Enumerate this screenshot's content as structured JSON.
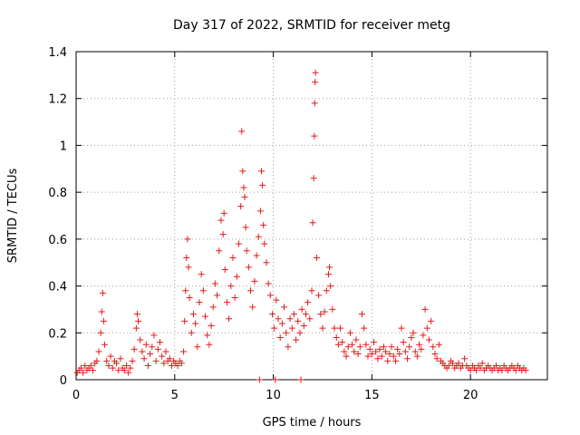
{
  "chart_data": {
    "type": "scatter",
    "title": "Day 317 of 2022, SRMTID for receiver metg",
    "xlabel": "GPS time / hours",
    "ylabel": "SRMTID / TECUs",
    "xlim": [
      0,
      23.9
    ],
    "ylim": [
      0,
      1.4
    ],
    "x_ticks": [
      0,
      5,
      10,
      15,
      20
    ],
    "y_ticks": [
      0,
      0.2,
      0.4,
      0.6,
      0.8,
      1,
      1.2,
      1.4
    ],
    "x_tick_labels": [
      "0",
      "5",
      "10",
      "15",
      "20"
    ],
    "y_tick_labels": [
      "0",
      "0.2",
      "0.4",
      "0.6",
      "0.8",
      "1",
      "1.2",
      "1.4"
    ],
    "grid": true,
    "marker": "+",
    "marker_color": "#e41a1c",
    "series": [
      {
        "name": "SRMTID",
        "points": [
          [
            0.05,
            0.03
          ],
          [
            0.15,
            0.04
          ],
          [
            0.25,
            0.05
          ],
          [
            0.35,
            0.03
          ],
          [
            0.45,
            0.06
          ],
          [
            0.55,
            0.04
          ],
          [
            0.65,
            0.05
          ],
          [
            0.75,
            0.06
          ],
          [
            0.85,
            0.04
          ],
          [
            0.95,
            0.07
          ],
          [
            1.05,
            0.08
          ],
          [
            1.15,
            0.12
          ],
          [
            1.25,
            0.2
          ],
          [
            1.3,
            0.29
          ],
          [
            1.35,
            0.37
          ],
          [
            1.4,
            0.25
          ],
          [
            1.45,
            0.15
          ],
          [
            1.55,
            0.08
          ],
          [
            1.65,
            0.06
          ],
          [
            1.75,
            0.1
          ],
          [
            1.85,
            0.05
          ],
          [
            1.95,
            0.08
          ],
          [
            2.05,
            0.07
          ],
          [
            2.15,
            0.04
          ],
          [
            2.25,
            0.09
          ],
          [
            2.35,
            0.05
          ],
          [
            2.45,
            0.04
          ],
          [
            2.55,
            0.06
          ],
          [
            2.65,
            0.03
          ],
          [
            2.75,
            0.05
          ],
          [
            2.85,
            0.08
          ],
          [
            2.95,
            0.13
          ],
          [
            3.05,
            0.22
          ],
          [
            3.1,
            0.28
          ],
          [
            3.15,
            0.25
          ],
          [
            3.25,
            0.17
          ],
          [
            3.35,
            0.12
          ],
          [
            3.45,
            0.09
          ],
          [
            3.55,
            0.15
          ],
          [
            3.65,
            0.06
          ],
          [
            3.75,
            0.11
          ],
          [
            3.85,
            0.14
          ],
          [
            3.95,
            0.19
          ],
          [
            4.05,
            0.08
          ],
          [
            4.15,
            0.13
          ],
          [
            4.25,
            0.16
          ],
          [
            4.35,
            0.1
          ],
          [
            4.45,
            0.07
          ],
          [
            4.55,
            0.12
          ],
          [
            4.65,
            0.08
          ],
          [
            4.75,
            0.09
          ],
          [
            4.85,
            0.06
          ],
          [
            4.95,
            0.08
          ],
          [
            5.05,
            0.07
          ],
          [
            5.15,
            0.06
          ],
          [
            5.25,
            0.08
          ],
          [
            5.35,
            0.07
          ],
          [
            5.45,
            0.12
          ],
          [
            5.5,
            0.25
          ],
          [
            5.55,
            0.38
          ],
          [
            5.6,
            0.52
          ],
          [
            5.65,
            0.6
          ],
          [
            5.7,
            0.48
          ],
          [
            5.75,
            0.35
          ],
          [
            5.85,
            0.2
          ],
          [
            5.95,
            0.28
          ],
          [
            6.05,
            0.24
          ],
          [
            6.15,
            0.14
          ],
          [
            6.25,
            0.33
          ],
          [
            6.35,
            0.45
          ],
          [
            6.45,
            0.38
          ],
          [
            6.55,
            0.27
          ],
          [
            6.65,
            0.19
          ],
          [
            6.75,
            0.15
          ],
          [
            6.85,
            0.23
          ],
          [
            6.95,
            0.31
          ],
          [
            7.05,
            0.41
          ],
          [
            7.15,
            0.36
          ],
          [
            7.25,
            0.55
          ],
          [
            7.35,
            0.68
          ],
          [
            7.45,
            0.62
          ],
          [
            7.5,
            0.71
          ],
          [
            7.55,
            0.47
          ],
          [
            7.65,
            0.33
          ],
          [
            7.75,
            0.26
          ],
          [
            7.85,
            0.4
          ],
          [
            7.95,
            0.52
          ],
          [
            8.05,
            0.35
          ],
          [
            8.15,
            0.44
          ],
          [
            8.25,
            0.58
          ],
          [
            8.35,
            0.74
          ],
          [
            8.4,
            1.06
          ],
          [
            8.45,
            0.89
          ],
          [
            8.5,
            0.82
          ],
          [
            8.55,
            0.78
          ],
          [
            8.6,
            0.65
          ],
          [
            8.65,
            0.55
          ],
          [
            8.75,
            0.48
          ],
          [
            8.85,
            0.38
          ],
          [
            8.95,
            0.31
          ],
          [
            9.05,
            0.42
          ],
          [
            9.15,
            0.53
          ],
          [
            9.25,
            0.61
          ],
          [
            9.35,
            0.72
          ],
          [
            9.4,
            0.89
          ],
          [
            9.45,
            0.83
          ],
          [
            9.5,
            0.66
          ],
          [
            9.55,
            0.58
          ],
          [
            9.65,
            0.5
          ],
          [
            9.75,
            0.41
          ],
          [
            9.85,
            0.36
          ],
          [
            9.95,
            0.28
          ],
          [
            10.05,
            0.22
          ],
          [
            10.15,
            0.34
          ],
          [
            10.25,
            0.26
          ],
          [
            10.35,
            0.18
          ],
          [
            10.45,
            0.24
          ],
          [
            10.55,
            0.31
          ],
          [
            10.65,
            0.2
          ],
          [
            10.75,
            0.14
          ],
          [
            10.85,
            0.26
          ],
          [
            10.95,
            0.22
          ],
          [
            11.05,
            0.28
          ],
          [
            11.15,
            0.17
          ],
          [
            11.25,
            0.25
          ],
          [
            11.35,
            0.2
          ],
          [
            11.45,
            0.3
          ],
          [
            11.55,
            0.23
          ],
          [
            11.65,
            0.28
          ],
          [
            11.75,
            0.33
          ],
          [
            11.85,
            0.26
          ],
          [
            11.95,
            0.38
          ],
          [
            12.0,
            0.67
          ],
          [
            12.05,
            0.86
          ],
          [
            12.08,
            1.04
          ],
          [
            12.1,
            1.18
          ],
          [
            12.12,
            1.27
          ],
          [
            12.14,
            1.31
          ],
          [
            12.2,
            0.52
          ],
          [
            12.3,
            0.36
          ],
          [
            12.4,
            0.28
          ],
          [
            12.5,
            0.22
          ],
          [
            12.6,
            0.29
          ],
          [
            12.7,
            0.38
          ],
          [
            12.8,
            0.45
          ],
          [
            12.85,
            0.48
          ],
          [
            12.9,
            0.4
          ],
          [
            13.0,
            0.3
          ],
          [
            13.1,
            0.22
          ],
          [
            13.2,
            0.18
          ],
          [
            13.3,
            0.15
          ],
          [
            13.4,
            0.22
          ],
          [
            13.5,
            0.16
          ],
          [
            13.6,
            0.12
          ],
          [
            13.7,
            0.1
          ],
          [
            13.8,
            0.14
          ],
          [
            13.9,
            0.2
          ],
          [
            14.0,
            0.15
          ],
          [
            14.1,
            0.12
          ],
          [
            14.2,
            0.17
          ],
          [
            14.3,
            0.11
          ],
          [
            14.4,
            0.14
          ],
          [
            14.5,
            0.28
          ],
          [
            14.6,
            0.22
          ],
          [
            14.7,
            0.15
          ],
          [
            14.8,
            0.1
          ],
          [
            14.9,
            0.13
          ],
          [
            15.0,
            0.11
          ],
          [
            15.1,
            0.16
          ],
          [
            15.2,
            0.12
          ],
          [
            15.3,
            0.09
          ],
          [
            15.4,
            0.13
          ],
          [
            15.5,
            0.1
          ],
          [
            15.6,
            0.14
          ],
          [
            15.7,
            0.12
          ],
          [
            15.8,
            0.08
          ],
          [
            15.9,
            0.11
          ],
          [
            16.0,
            0.14
          ],
          [
            16.1,
            0.1
          ],
          [
            16.2,
            0.08
          ],
          [
            16.3,
            0.13
          ],
          [
            16.4,
            0.11
          ],
          [
            16.5,
            0.22
          ],
          [
            16.6,
            0.16
          ],
          [
            16.7,
            0.12
          ],
          [
            16.8,
            0.09
          ],
          [
            16.9,
            0.14
          ],
          [
            17.0,
            0.18
          ],
          [
            17.1,
            0.2
          ],
          [
            17.2,
            0.12
          ],
          [
            17.3,
            0.1
          ],
          [
            17.4,
            0.15
          ],
          [
            17.5,
            0.13
          ],
          [
            17.6,
            0.19
          ],
          [
            17.7,
            0.3
          ],
          [
            17.8,
            0.22
          ],
          [
            17.9,
            0.17
          ],
          [
            18.0,
            0.25
          ],
          [
            18.1,
            0.14
          ],
          [
            18.2,
            0.11
          ],
          [
            18.3,
            0.09
          ],
          [
            18.4,
            0.15
          ],
          [
            18.5,
            0.08
          ],
          [
            18.6,
            0.07
          ],
          [
            18.7,
            0.06
          ],
          [
            18.8,
            0.05
          ],
          [
            18.9,
            0.06
          ],
          [
            19.0,
            0.08
          ],
          [
            19.1,
            0.07
          ],
          [
            19.2,
            0.05
          ],
          [
            19.3,
            0.06
          ],
          [
            19.4,
            0.07
          ],
          [
            19.5,
            0.05
          ],
          [
            19.6,
            0.06
          ],
          [
            19.7,
            0.09
          ],
          [
            19.8,
            0.06
          ],
          [
            19.9,
            0.05
          ],
          [
            20.0,
            0.04
          ],
          [
            20.1,
            0.06
          ],
          [
            20.2,
            0.05
          ],
          [
            20.3,
            0.04
          ],
          [
            20.4,
            0.06
          ],
          [
            20.5,
            0.05
          ],
          [
            20.6,
            0.07
          ],
          [
            20.7,
            0.04
          ],
          [
            20.8,
            0.05
          ],
          [
            20.9,
            0.06
          ],
          [
            21.0,
            0.05
          ],
          [
            21.1,
            0.04
          ],
          [
            21.2,
            0.05
          ],
          [
            21.3,
            0.06
          ],
          [
            21.4,
            0.04
          ],
          [
            21.5,
            0.05
          ],
          [
            21.6,
            0.04
          ],
          [
            21.7,
            0.06
          ],
          [
            21.8,
            0.05
          ],
          [
            21.9,
            0.04
          ],
          [
            22.0,
            0.05
          ],
          [
            22.1,
            0.06
          ],
          [
            22.2,
            0.05
          ],
          [
            22.3,
            0.04
          ],
          [
            22.4,
            0.06
          ],
          [
            22.5,
            0.05
          ],
          [
            22.6,
            0.04
          ],
          [
            22.7,
            0.05
          ],
          [
            22.8,
            0.04
          ],
          [
            9.3,
            0.0
          ],
          [
            10.1,
            0.0
          ],
          [
            11.4,
            0.0
          ]
        ]
      }
    ]
  }
}
